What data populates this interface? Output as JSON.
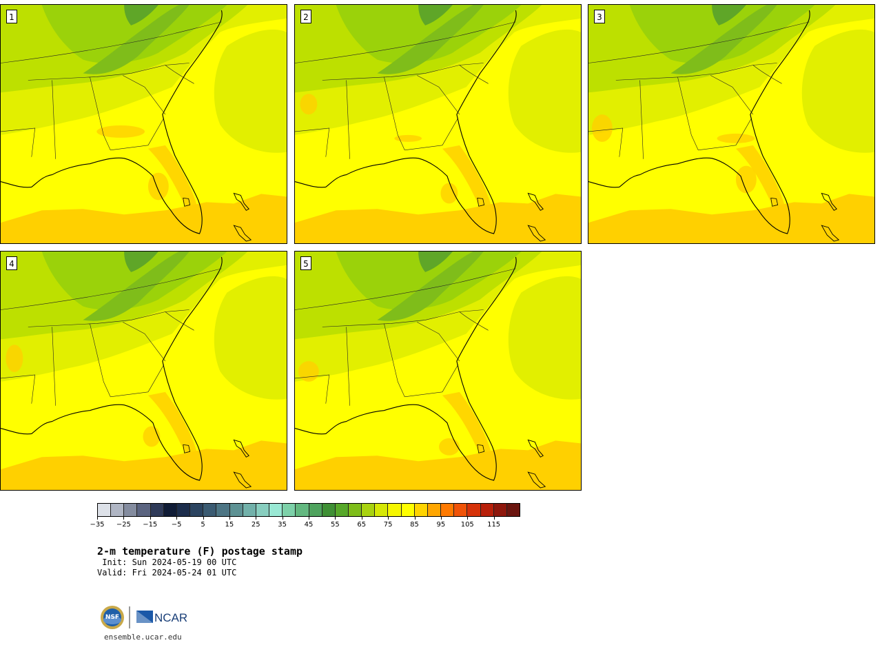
{
  "panels": [
    {
      "label": "1"
    },
    {
      "label": "2"
    },
    {
      "label": "3"
    },
    {
      "label": "4"
    },
    {
      "label": "5"
    }
  ],
  "colorbar": {
    "colors": [
      "#dde1e8",
      "#b0b6c4",
      "#848c9f",
      "#5b6480",
      "#2f3a58",
      "#101c36",
      "#1c2d4b",
      "#2c4460",
      "#3b5b72",
      "#4d7584",
      "#5e9294",
      "#72b1aa",
      "#88cebf",
      "#99e8d4",
      "#7dd1a9",
      "#63b880",
      "#4fa35e",
      "#3f9035",
      "#57a82a",
      "#7ebd1a",
      "#a9d310",
      "#d6e806",
      "#f6f700",
      "#ffff00",
      "#ffd400",
      "#ffa600",
      "#ff7a00",
      "#f05308",
      "#d63209",
      "#b8200a",
      "#8e170c",
      "#6b150f"
    ],
    "ticks": [
      "−35",
      "−25",
      "−15",
      "−5",
      "5",
      "15",
      "25",
      "35",
      "45",
      "55",
      "65",
      "75",
      "85",
      "95",
      "105",
      "115"
    ]
  },
  "title": "2-m temperature (F) postage stamp",
  "init_line": " Init: Sun 2024-05-19 00 UTC",
  "valid_line": "Valid: Fri 2024-05-24 01 UTC",
  "site": "ensemble.ucar.edu",
  "logo": {
    "nsf": "NSF",
    "ncar": "NCAR"
  }
}
